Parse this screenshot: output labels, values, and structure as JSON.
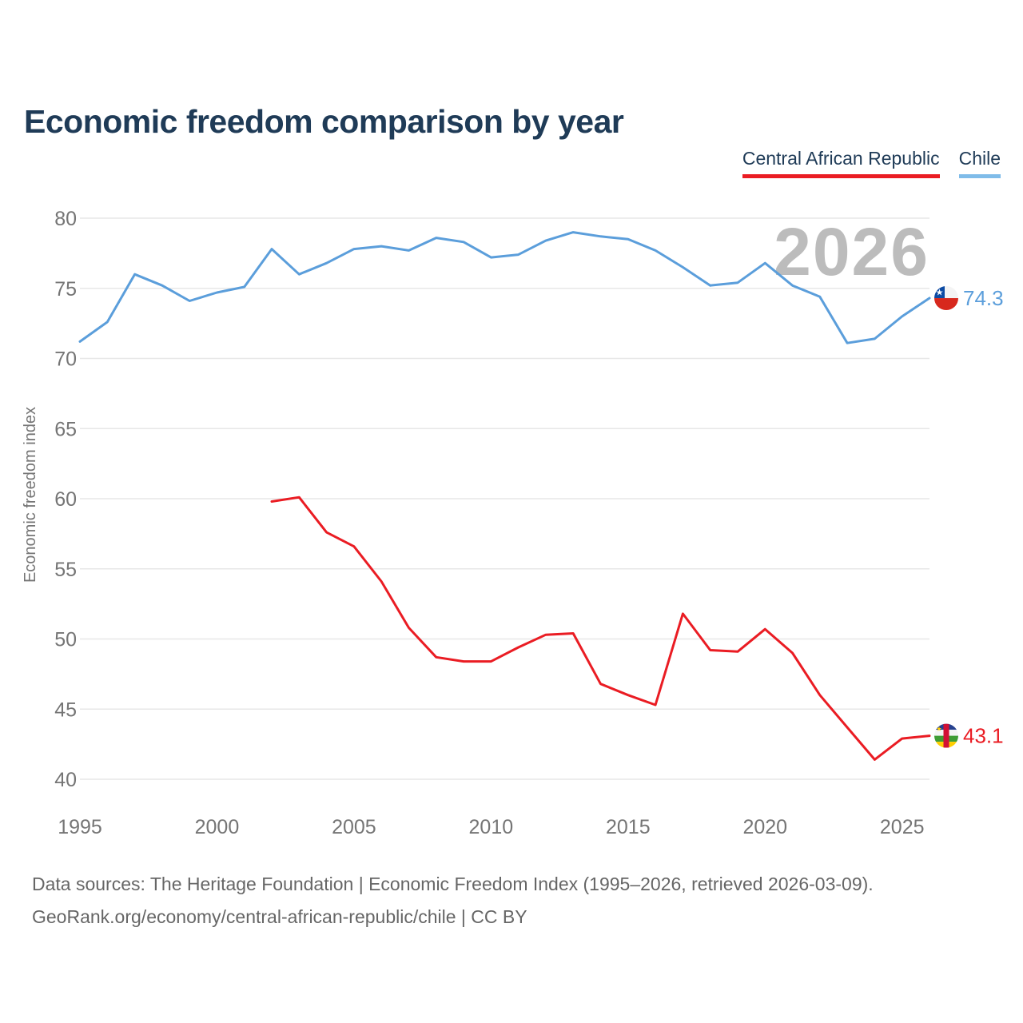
{
  "title": "Economic freedom comparison by year",
  "legend": [
    {
      "label": "Central African Republic",
      "underline_color": "#ea1c23"
    },
    {
      "label": "Chile",
      "underline_color": "#7fbce9"
    }
  ],
  "watermark": "2026",
  "footer": {
    "line1": "Data sources: The Heritage Foundation | Economic Freedom Index (1995–2026, retrieved 2026-03-09).",
    "line2": "GeoRank.org/economy/central-african-republic/chile | CC BY"
  },
  "colors": {
    "title_text": "#1f3b57",
    "grid_line": "#e7e7e7",
    "tick_label": "#757575",
    "axis_title": "#757575",
    "watermark": "#bcbcbc",
    "car_red": "#ea1c23",
    "chile_blue": "#5b9edb"
  },
  "chart_data": {
    "type": "line",
    "title": "Economic freedom comparison by year",
    "xlabel": "",
    "ylabel": "Economic freedom index",
    "xlim": [
      1995,
      2026
    ],
    "ylim": [
      40,
      80
    ],
    "xticks": [
      1995,
      2000,
      2005,
      2010,
      2015,
      2020,
      2025
    ],
    "yticks": [
      40,
      45,
      50,
      55,
      60,
      65,
      70,
      75,
      80
    ],
    "grid": "horizontal",
    "legend_position": "top-right",
    "watermark": "2026",
    "series": [
      {
        "name": "Central African Republic",
        "color": "#ea1c23",
        "flag": "car",
        "end_label": "43.1",
        "points": [
          [
            2002,
            59.8
          ],
          [
            2003,
            60.1
          ],
          [
            2004,
            57.6
          ],
          [
            2005,
            56.6
          ],
          [
            2006,
            54.1
          ],
          [
            2007,
            50.8
          ],
          [
            2008,
            48.7
          ],
          [
            2009,
            48.4
          ],
          [
            2010,
            48.4
          ],
          [
            2011,
            49.4
          ],
          [
            2012,
            50.3
          ],
          [
            2013,
            50.4
          ],
          [
            2014,
            46.8
          ],
          [
            2015,
            46.0
          ],
          [
            2016,
            45.3
          ],
          [
            2017,
            51.8
          ],
          [
            2018,
            49.2
          ],
          [
            2019,
            49.1
          ],
          [
            2020,
            50.7
          ],
          [
            2021,
            49.0
          ],
          [
            2022,
            46.0
          ],
          [
            2023,
            43.7
          ],
          [
            2024,
            41.4
          ],
          [
            2025,
            42.9
          ],
          [
            2026,
            43.1
          ]
        ]
      },
      {
        "name": "Chile",
        "color": "#5b9edb",
        "flag": "chile",
        "end_label": "74.3",
        "points": [
          [
            1995,
            71.2
          ],
          [
            1996,
            72.6
          ],
          [
            1997,
            76.0
          ],
          [
            1998,
            75.2
          ],
          [
            1999,
            74.1
          ],
          [
            2000,
            74.7
          ],
          [
            2001,
            75.1
          ],
          [
            2002,
            77.8
          ],
          [
            2003,
            76.0
          ],
          [
            2004,
            76.8
          ],
          [
            2005,
            77.8
          ],
          [
            2006,
            78.0
          ],
          [
            2007,
            77.7
          ],
          [
            2008,
            78.6
          ],
          [
            2009,
            78.3
          ],
          [
            2010,
            77.2
          ],
          [
            2011,
            77.4
          ],
          [
            2012,
            78.4
          ],
          [
            2013,
            79.0
          ],
          [
            2014,
            78.7
          ],
          [
            2015,
            78.5
          ],
          [
            2016,
            77.7
          ],
          [
            2017,
            76.5
          ],
          [
            2018,
            75.2
          ],
          [
            2019,
            75.4
          ],
          [
            2020,
            76.8
          ],
          [
            2021,
            75.2
          ],
          [
            2022,
            74.4
          ],
          [
            2023,
            71.1
          ],
          [
            2024,
            71.4
          ],
          [
            2025,
            73.0
          ],
          [
            2026,
            74.3
          ]
        ]
      }
    ]
  }
}
